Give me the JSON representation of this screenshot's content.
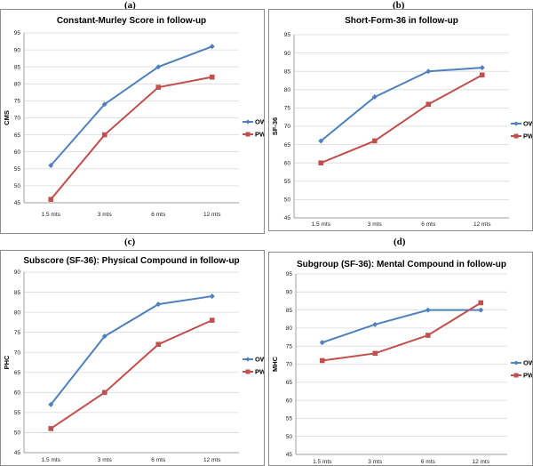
{
  "panels": [
    "(a)",
    "(b)",
    "(c)",
    "(d)"
  ],
  "colors": {
    "OW": "#4f81bd",
    "PW": "#c0504d"
  },
  "chart_data": [
    {
      "type": "line",
      "title": "Constant-Murley Score in follow-up",
      "ylabel": "CMS",
      "xlabel": "",
      "categories": [
        "1.5 mts",
        "3 mts",
        "6 mts",
        "12 mts"
      ],
      "ylim": [
        45,
        95
      ],
      "yticks": [
        45,
        50,
        55,
        60,
        65,
        70,
        75,
        80,
        85,
        90,
        95
      ],
      "grid": true,
      "legend": "right",
      "series": [
        {
          "name": "OW",
          "marker": "diamond",
          "values": [
            56,
            74,
            85,
            91
          ]
        },
        {
          "name": "PW",
          "marker": "square",
          "values": [
            46,
            65,
            79,
            82
          ]
        }
      ]
    },
    {
      "type": "line",
      "title": "Short-Form-36 in follow-up",
      "ylabel": "SF-36",
      "xlabel": "",
      "categories": [
        "1.5 mts",
        "3 mts",
        "6 mts",
        "12 mts"
      ],
      "ylim": [
        45,
        95
      ],
      "yticks": [
        45,
        50,
        55,
        60,
        65,
        70,
        75,
        80,
        85,
        90,
        95
      ],
      "grid": true,
      "legend": "right",
      "series": [
        {
          "name": "OW",
          "marker": "diamond",
          "values": [
            66,
            78,
            85,
            86
          ]
        },
        {
          "name": "PW",
          "marker": "square",
          "values": [
            60,
            66,
            76,
            84
          ]
        }
      ]
    },
    {
      "type": "line",
      "title": "Subscore (SF-36): Physical Compound in follow-up",
      "ylabel": "PHC",
      "xlabel": "",
      "categories": [
        "1.5 mts",
        "3 mts",
        "6 mts",
        "12 mts"
      ],
      "ylim": [
        45,
        90
      ],
      "yticks": [
        45,
        50,
        55,
        60,
        65,
        70,
        75,
        80,
        85,
        90
      ],
      "grid": true,
      "legend": "right",
      "series": [
        {
          "name": "OW",
          "marker": "diamond",
          "values": [
            57,
            74,
            82,
            84
          ]
        },
        {
          "name": "PW",
          "marker": "square",
          "values": [
            51,
            60,
            72,
            78
          ]
        }
      ]
    },
    {
      "type": "line",
      "title": "Subgroup (SF-36): Mental Compound in follow-up",
      "ylabel": "MHC",
      "xlabel": "",
      "categories": [
        "1.5 mts",
        "3 mts",
        "6 mts",
        "12 mts"
      ],
      "ylim": [
        45,
        95
      ],
      "yticks": [
        45,
        50,
        55,
        60,
        65,
        70,
        75,
        80,
        85,
        90,
        95
      ],
      "grid": true,
      "legend": "right",
      "series": [
        {
          "name": "OW",
          "marker": "diamond",
          "values": [
            76,
            81,
            85,
            85
          ]
        },
        {
          "name": "PW",
          "marker": "square",
          "values": [
            71,
            73,
            78,
            87
          ]
        }
      ]
    }
  ]
}
